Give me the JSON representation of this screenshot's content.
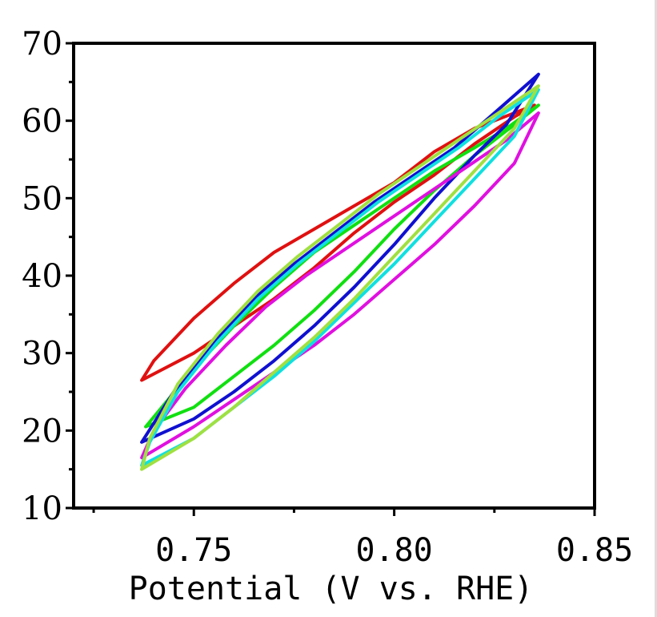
{
  "chart_data": {
    "type": "line",
    "title": "",
    "xlabel": "Potential (V vs. RHE)",
    "ylabel": "",
    "xlim": [
      0.72,
      0.85
    ],
    "ylim": [
      10,
      70
    ],
    "xticks": [
      0.75,
      0.8,
      0.85
    ],
    "xtick_labels": [
      "0.75",
      "0.80",
      "0.85"
    ],
    "yticks": [
      10,
      20,
      30,
      40,
      50,
      60,
      70
    ],
    "ytick_labels": [
      "10",
      "20",
      "30",
      "40",
      "50",
      "60",
      "70"
    ],
    "grid": false,
    "legend": "none",
    "series": [
      {
        "color": "#e01010",
        "forward": [
          [
            0.737,
            26.5
          ],
          [
            0.75,
            30.0
          ],
          [
            0.76,
            33.5
          ],
          [
            0.77,
            37.0
          ],
          [
            0.78,
            41.0
          ],
          [
            0.79,
            45.5
          ],
          [
            0.8,
            49.5
          ],
          [
            0.81,
            53.0
          ],
          [
            0.82,
            57.0
          ],
          [
            0.83,
            60.5
          ],
          [
            0.835,
            62.0
          ]
        ],
        "reverse": [
          [
            0.835,
            62.0
          ],
          [
            0.82,
            59.0
          ],
          [
            0.81,
            56.0
          ],
          [
            0.8,
            52.0
          ],
          [
            0.79,
            49.0
          ],
          [
            0.78,
            46.0
          ],
          [
            0.77,
            43.0
          ],
          [
            0.76,
            39.0
          ],
          [
            0.75,
            34.5
          ],
          [
            0.74,
            29.0
          ],
          [
            0.737,
            26.5
          ]
        ]
      },
      {
        "color": "#10e010",
        "forward": [
          [
            0.738,
            20.5
          ],
          [
            0.75,
            23.0
          ],
          [
            0.76,
            27.0
          ],
          [
            0.77,
            31.0
          ],
          [
            0.78,
            35.5
          ],
          [
            0.79,
            40.5
          ],
          [
            0.8,
            46.0
          ],
          [
            0.81,
            51.0
          ],
          [
            0.82,
            55.5
          ],
          [
            0.83,
            59.5
          ],
          [
            0.836,
            62.0
          ]
        ],
        "reverse": [
          [
            0.836,
            62.0
          ],
          [
            0.828,
            59.0
          ],
          [
            0.82,
            56.5
          ],
          [
            0.81,
            53.5
          ],
          [
            0.8,
            50.0
          ],
          [
            0.79,
            46.5
          ],
          [
            0.78,
            43.0
          ],
          [
            0.77,
            38.5
          ],
          [
            0.76,
            33.5
          ],
          [
            0.75,
            28.0
          ],
          [
            0.742,
            23.0
          ],
          [
            0.738,
            20.5
          ]
        ]
      },
      {
        "color": "#1010d0",
        "forward": [
          [
            0.737,
            18.5
          ],
          [
            0.75,
            21.5
          ],
          [
            0.76,
            25.0
          ],
          [
            0.77,
            29.0
          ],
          [
            0.78,
            33.5
          ],
          [
            0.79,
            38.5
          ],
          [
            0.8,
            44.0
          ],
          [
            0.81,
            50.0
          ],
          [
            0.82,
            55.5
          ],
          [
            0.828,
            59.5
          ],
          [
            0.836,
            66.0
          ]
        ],
        "reverse": [
          [
            0.836,
            66.0
          ],
          [
            0.825,
            61.0
          ],
          [
            0.815,
            56.5
          ],
          [
            0.805,
            53.0
          ],
          [
            0.795,
            49.5
          ],
          [
            0.785,
            45.5
          ],
          [
            0.775,
            41.5
          ],
          [
            0.765,
            37.0
          ],
          [
            0.755,
            31.5
          ],
          [
            0.745,
            25.0
          ],
          [
            0.737,
            18.5
          ]
        ]
      },
      {
        "color": "#e010e0",
        "forward": [
          [
            0.737,
            16.5
          ],
          [
            0.75,
            20.5
          ],
          [
            0.76,
            24.0
          ],
          [
            0.77,
            27.5
          ],
          [
            0.78,
            31.0
          ],
          [
            0.79,
            35.0
          ],
          [
            0.8,
            39.5
          ],
          [
            0.81,
            44.0
          ],
          [
            0.82,
            49.0
          ],
          [
            0.83,
            54.5
          ],
          [
            0.836,
            61.0
          ]
        ],
        "reverse": [
          [
            0.836,
            61.0
          ],
          [
            0.828,
            57.5
          ],
          [
            0.818,
            54.0
          ],
          [
            0.808,
            50.5
          ],
          [
            0.798,
            47.0
          ],
          [
            0.788,
            43.5
          ],
          [
            0.778,
            40.0
          ],
          [
            0.768,
            36.0
          ],
          [
            0.758,
            31.0
          ],
          [
            0.748,
            25.5
          ],
          [
            0.74,
            20.0
          ],
          [
            0.737,
            16.5
          ]
        ]
      },
      {
        "color": "#10e0e0",
        "forward": [
          [
            0.737,
            15.5
          ],
          [
            0.75,
            19.0
          ],
          [
            0.76,
            23.0
          ],
          [
            0.77,
            27.0
          ],
          [
            0.78,
            31.5
          ],
          [
            0.79,
            36.5
          ],
          [
            0.8,
            41.5
          ],
          [
            0.81,
            47.0
          ],
          [
            0.82,
            52.5
          ],
          [
            0.83,
            58.0
          ],
          [
            0.836,
            64.0
          ]
        ],
        "reverse": [
          [
            0.836,
            64.0
          ],
          [
            0.826,
            60.5
          ],
          [
            0.816,
            56.5
          ],
          [
            0.806,
            53.0
          ],
          [
            0.796,
            49.5
          ],
          [
            0.786,
            45.5
          ],
          [
            0.776,
            41.5
          ],
          [
            0.766,
            37.0
          ],
          [
            0.756,
            31.5
          ],
          [
            0.746,
            25.0
          ],
          [
            0.739,
            18.5
          ],
          [
            0.737,
            15.5
          ]
        ]
      },
      {
        "color": "#a0e040",
        "forward": [
          [
            0.737,
            15.0
          ],
          [
            0.75,
            19.0
          ],
          [
            0.76,
            23.0
          ],
          [
            0.77,
            27.5
          ],
          [
            0.78,
            32.0
          ],
          [
            0.79,
            37.0
          ],
          [
            0.8,
            42.5
          ],
          [
            0.81,
            48.0
          ],
          [
            0.82,
            53.5
          ],
          [
            0.83,
            59.0
          ],
          [
            0.836,
            64.5
          ]
        ],
        "reverse": [
          [
            0.836,
            64.5
          ],
          [
            0.826,
            61.0
          ],
          [
            0.816,
            57.5
          ],
          [
            0.806,
            54.0
          ],
          [
            0.796,
            50.5
          ],
          [
            0.786,
            46.5
          ],
          [
            0.776,
            42.5
          ],
          [
            0.766,
            38.0
          ],
          [
            0.756,
            32.5
          ],
          [
            0.746,
            26.0
          ],
          [
            0.739,
            19.0
          ],
          [
            0.737,
            15.0
          ]
        ]
      }
    ]
  }
}
